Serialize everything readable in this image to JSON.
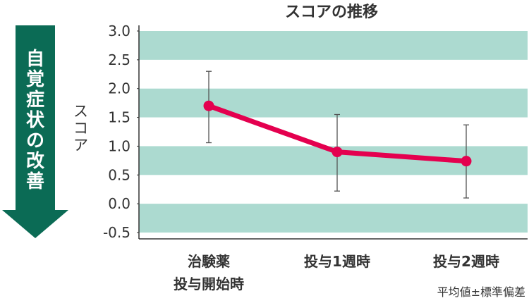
{
  "arrow_label": "自覚症状の改善",
  "colors": {
    "band": "#acdad0",
    "line": "#e4004f",
    "arrow": "#0b6b55",
    "errorbar": "#555555"
  },
  "chart_data": {
    "type": "line",
    "title": "スコアの推移",
    "ylabel": "スコア",
    "xlabel": "",
    "ylim": [
      -0.5,
      3.0
    ],
    "yticks": [
      "3.0",
      "2.5",
      "2.0",
      "1.5",
      "1.0",
      "0.5",
      "0.0",
      "-0.5"
    ],
    "categories": [
      [
        "治験薬",
        "投与開始時"
      ],
      [
        "投与1週時"
      ],
      [
        "投与2週時"
      ]
    ],
    "values": [
      1.7,
      0.9,
      0.74
    ],
    "error_low": [
      1.06,
      0.22,
      0.1
    ],
    "error_high": [
      2.3,
      1.55,
      1.37
    ],
    "grid": "alternating horizontal bands",
    "note": "平均値±標準偏差"
  }
}
